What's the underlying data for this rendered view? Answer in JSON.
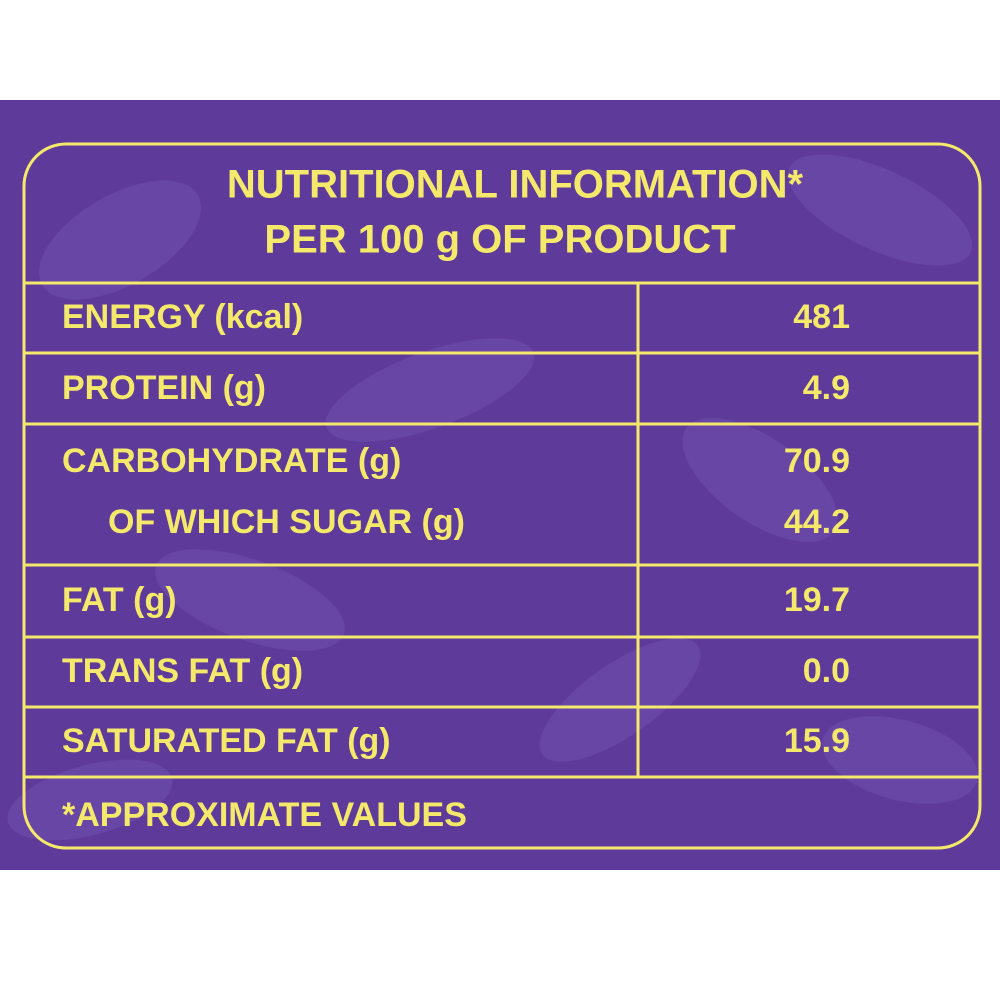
{
  "header": {
    "title": [
      "NUTRITIONAL INFORMATION*",
      "PER 100 g  OF PRODUCT"
    ]
  },
  "table": {
    "rows": [
      [
        "ENERGY (kcal)",
        "481"
      ],
      [
        "PROTEIN (g)",
        "4.9"
      ],
      [
        "CARBOHYDRATE (g)",
        "70.9"
      ],
      [
        "OF WHICH SUGAR (g)",
        "44.2"
      ],
      [
        "FAT (g)",
        "19.7"
      ],
      [
        "TRANS FAT (g)",
        "0.0"
      ],
      [
        "SATURATED FAT (g)",
        "15.9"
      ]
    ]
  },
  "footnote": "*APPROXIMATE VALUES"
}
